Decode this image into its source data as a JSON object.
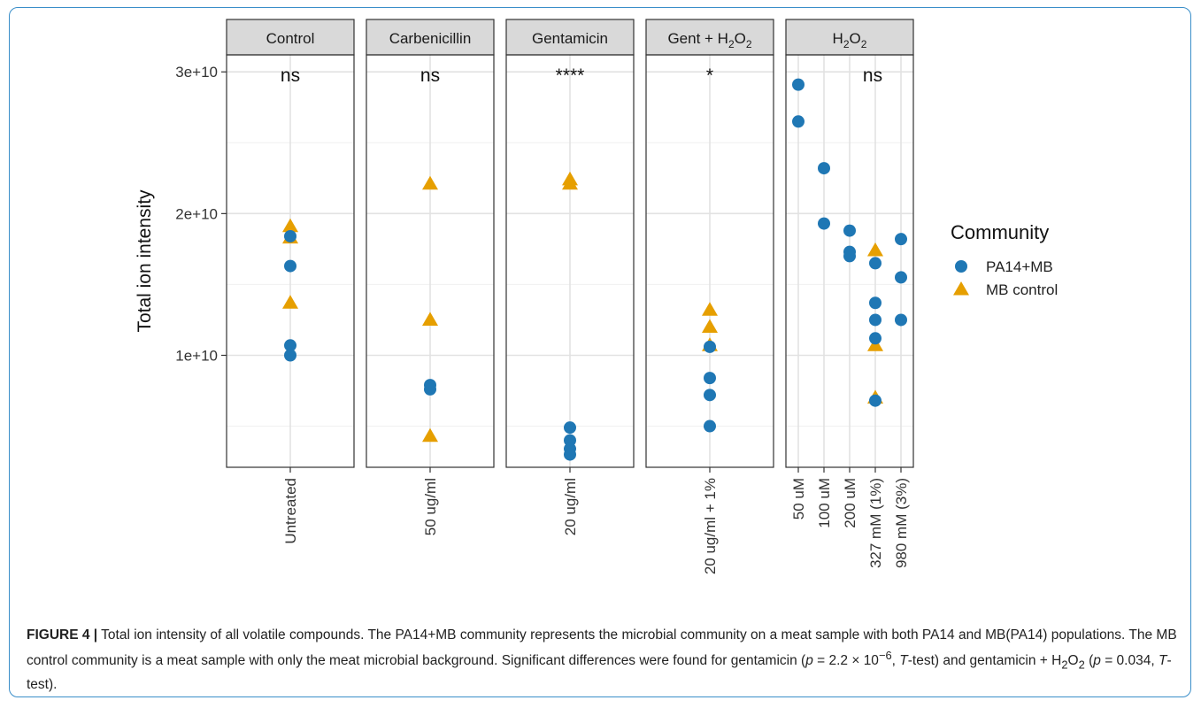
{
  "chart_data": {
    "type": "scatter",
    "ylabel": "Total ion intensity",
    "y_ticks": [
      {
        "value": 10000000000,
        "label": "1e+10"
      },
      {
        "value": 20000000000,
        "label": "2e+10"
      },
      {
        "value": 30000000000,
        "label": "3e+10"
      }
    ],
    "ylim": [
      2100000000,
      31200000000
    ],
    "grid": true,
    "legend": {
      "title": "Community",
      "position": "right",
      "entries": [
        {
          "name": "PA14+MB",
          "shape": "circle",
          "color": "#1f77b4"
        },
        {
          "name": "MB control",
          "shape": "triangle",
          "color": "#e69f00"
        }
      ]
    },
    "panels": [
      {
        "strip": "Control",
        "significance": "ns",
        "categories": [
          "Untreated"
        ],
        "points": [
          {
            "x": "Untreated",
            "group": "MB control",
            "y": 19100000000
          },
          {
            "x": "Untreated",
            "group": "MB control",
            "y": 18300000000
          },
          {
            "x": "Untreated",
            "group": "MB control",
            "y": 13700000000
          },
          {
            "x": "Untreated",
            "group": "PA14+MB",
            "y": 18400000000
          },
          {
            "x": "Untreated",
            "group": "PA14+MB",
            "y": 16300000000
          },
          {
            "x": "Untreated",
            "group": "PA14+MB",
            "y": 10700000000
          },
          {
            "x": "Untreated",
            "group": "PA14+MB",
            "y": 10000000000
          }
        ]
      },
      {
        "strip": "Carbenicillin",
        "significance": "ns",
        "categories": [
          "50 ug/ml"
        ],
        "points": [
          {
            "x": "50 ug/ml",
            "group": "MB control",
            "y": 22100000000
          },
          {
            "x": "50 ug/ml",
            "group": "MB control",
            "y": 12500000000
          },
          {
            "x": "50 ug/ml",
            "group": "MB control",
            "y": 4300000000
          },
          {
            "x": "50 ug/ml",
            "group": "PA14+MB",
            "y": 7900000000
          },
          {
            "x": "50 ug/ml",
            "group": "PA14+MB",
            "y": 7600000000
          }
        ]
      },
      {
        "strip": "Gentamicin",
        "significance": "****",
        "categories": [
          "20 ug/ml"
        ],
        "points": [
          {
            "x": "20 ug/ml",
            "group": "MB control",
            "y": 22400000000
          },
          {
            "x": "20 ug/ml",
            "group": "MB control",
            "y": 22100000000
          },
          {
            "x": "20 ug/ml",
            "group": "PA14+MB",
            "y": 4900000000
          },
          {
            "x": "20 ug/ml",
            "group": "PA14+MB",
            "y": 4000000000
          },
          {
            "x": "20 ug/ml",
            "group": "PA14+MB",
            "y": 3400000000
          },
          {
            "x": "20 ug/ml",
            "group": "PA14+MB",
            "y": 3000000000
          }
        ]
      },
      {
        "strip": "Gent + H2O2",
        "significance": "*",
        "categories": [
          "20 ug/ml + 1%"
        ],
        "points": [
          {
            "x": "20 ug/ml + 1%",
            "group": "MB control",
            "y": 13200000000
          },
          {
            "x": "20 ug/ml + 1%",
            "group": "MB control",
            "y": 12000000000
          },
          {
            "x": "20 ug/ml + 1%",
            "group": "MB control",
            "y": 10700000000
          },
          {
            "x": "20 ug/ml + 1%",
            "group": "PA14+MB",
            "y": 10600000000
          },
          {
            "x": "20 ug/ml + 1%",
            "group": "PA14+MB",
            "y": 8400000000
          },
          {
            "x": "20 ug/ml + 1%",
            "group": "PA14+MB",
            "y": 7200000000
          },
          {
            "x": "20 ug/ml + 1%",
            "group": "PA14+MB",
            "y": 5000000000
          }
        ]
      },
      {
        "strip": "H2O2",
        "significance": "ns",
        "categories": [
          "50 uM",
          "100 uM",
          "200 uM",
          "327 mM (1%)",
          "980 mM (3%)"
        ],
        "points": [
          {
            "x": "50 uM",
            "group": "PA14+MB",
            "y": 29100000000
          },
          {
            "x": "50 uM",
            "group": "PA14+MB",
            "y": 26500000000
          },
          {
            "x": "100 uM",
            "group": "PA14+MB",
            "y": 23200000000
          },
          {
            "x": "100 uM",
            "group": "PA14+MB",
            "y": 19300000000
          },
          {
            "x": "200 uM",
            "group": "PA14+MB",
            "y": 18800000000
          },
          {
            "x": "200 uM",
            "group": "PA14+MB",
            "y": 17300000000
          },
          {
            "x": "200 uM",
            "group": "PA14+MB",
            "y": 17000000000
          },
          {
            "x": "327 mM (1%)",
            "group": "MB control",
            "y": 17400000000
          },
          {
            "x": "327 mM (1%)",
            "group": "MB control",
            "y": 10700000000
          },
          {
            "x": "327 mM (1%)",
            "group": "MB control",
            "y": 7000000000
          },
          {
            "x": "327 mM (1%)",
            "group": "PA14+MB",
            "y": 16500000000
          },
          {
            "x": "327 mM (1%)",
            "group": "PA14+MB",
            "y": 13700000000
          },
          {
            "x": "327 mM (1%)",
            "group": "PA14+MB",
            "y": 12500000000
          },
          {
            "x": "327 mM (1%)",
            "group": "PA14+MB",
            "y": 11200000000
          },
          {
            "x": "327 mM (1%)",
            "group": "PA14+MB",
            "y": 6800000000
          },
          {
            "x": "980 mM (3%)",
            "group": "PA14+MB",
            "y": 18200000000
          },
          {
            "x": "980 mM (3%)",
            "group": "PA14+MB",
            "y": 15500000000
          },
          {
            "x": "980 mM (3%)",
            "group": "PA14+MB",
            "y": 12500000000
          }
        ]
      }
    ]
  },
  "caption": {
    "label": "FIGURE 4 |",
    "text1": " Total ion intensity of all volatile compounds. The PA14+MB community represents the microbial community on a meat sample with both PA14 and MB(PA14) populations. The MB control community is a meat sample with only the meat microbial background. Significant differences were found for gentamicin (",
    "p1": "p",
    "text2": " = 2.2 × 10",
    "exp1": "−6",
    "text3": ", ",
    "t1": "T",
    "text4": "-test) and gentamicin + H",
    "sub1": "2",
    "text5": "O",
    "sub2": "2",
    "text6": " (",
    "p2": "p",
    "text7": " = 0.034, ",
    "t2": "T",
    "text8": "-test)."
  }
}
